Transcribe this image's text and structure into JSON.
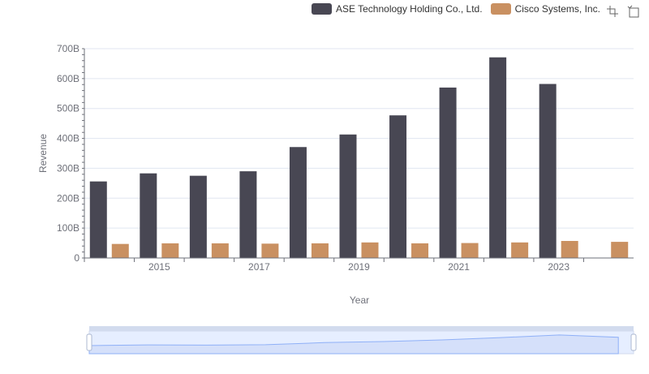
{
  "colors": {
    "ase": "#484753",
    "cisco": "#c99061",
    "grid": "#e0e6f1",
    "axis": "#6e7079",
    "zoom_fill": "#e6eeff",
    "zoom_border": "#d2dbee",
    "zoom_line": "#8fb0f7"
  },
  "legend": [
    {
      "label": "ASE Technology Holding Co., Ltd.",
      "color": "#484753"
    },
    {
      "label": "Cisco Systems, Inc.",
      "color": "#c99061"
    }
  ],
  "toolbox": {
    "zoom_icon": "crosshair-zoom-icon",
    "restore_icon": "restore-icon"
  },
  "chart_data": {
    "type": "bar",
    "xlabel": "Year",
    "ylabel": "Revenue",
    "ylim": [
      0,
      700
    ],
    "y_ticks": [
      "0",
      "100B",
      "200B",
      "300B",
      "400B",
      "500B",
      "600B",
      "700B"
    ],
    "categories": [
      "2014",
      "2015",
      "2016",
      "2017",
      "2018",
      "2019",
      "2020",
      "2021",
      "2022",
      "2023",
      "2024"
    ],
    "x_tick_labels": [
      "2015",
      "2017",
      "2019",
      "2021",
      "2023"
    ],
    "series": [
      {
        "name": "ASE Technology Holding Co., Ltd.",
        "values": [
          256,
          283,
          275,
          290,
          371,
          413,
          477,
          570,
          671,
          582,
          null
        ]
      },
      {
        "name": "Cisco Systems, Inc.",
        "values": [
          47,
          49,
          49,
          48,
          49,
          52,
          49,
          50,
          52,
          57,
          54
        ]
      }
    ],
    "grid": true,
    "legend_position": "top-right"
  }
}
